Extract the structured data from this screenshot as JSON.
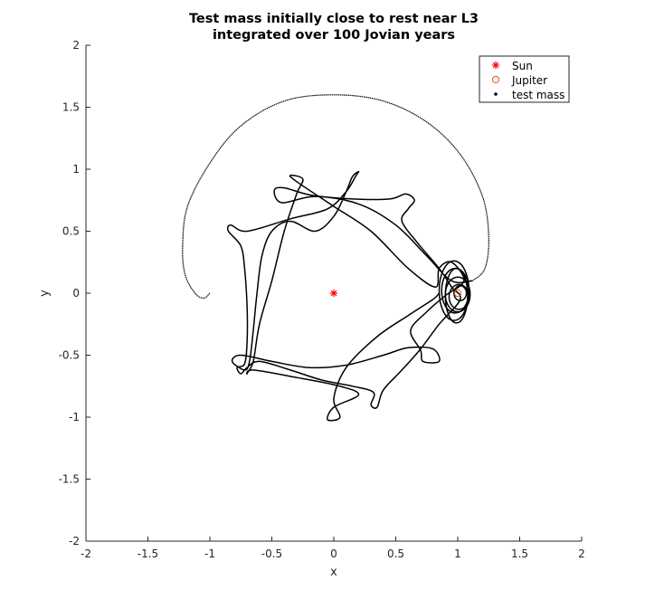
{
  "chart_data": {
    "type": "line",
    "title": "Test mass initially close to rest near L3",
    "subtitle": "integrated over 100 Jovian years",
    "xlabel": "x",
    "ylabel": "y",
    "xlim": [
      -2,
      2
    ],
    "ylim": [
      -2,
      2
    ],
    "xticks": [
      "-2",
      "-1.5",
      "-1",
      "-0.5",
      "0",
      "0.5",
      "1",
      "1.5",
      "2"
    ],
    "yticks": [
      "-2",
      "-1.5",
      "-1",
      "-0.5",
      "0",
      "0.5",
      "1",
      "1.5",
      "2"
    ],
    "grid": false,
    "legend_position": "top-right",
    "legend": [
      {
        "label": "Sun",
        "marker": "asterisk",
        "color": "#ff0000"
      },
      {
        "label": "Jupiter",
        "marker": "circle",
        "color": "#d95319"
      },
      {
        "label": "test mass",
        "marker": "dot",
        "color": "#000000"
      }
    ],
    "sun": {
      "x": 0,
      "y": 0
    },
    "jupiter": {
      "x": 1,
      "y": 0
    },
    "outer_arc": [
      [
        -1.0,
        0.0
      ],
      [
        -1.05,
        -0.04
      ],
      [
        -1.12,
        0.0
      ],
      [
        -1.2,
        0.15
      ],
      [
        -1.22,
        0.38
      ],
      [
        -1.18,
        0.7
      ],
      [
        -1.0,
        1.05
      ],
      [
        -0.75,
        1.35
      ],
      [
        -0.4,
        1.55
      ],
      [
        0.0,
        1.6
      ],
      [
        0.4,
        1.55
      ],
      [
        0.75,
        1.38
      ],
      [
        1.02,
        1.12
      ],
      [
        1.2,
        0.78
      ],
      [
        1.25,
        0.45
      ],
      [
        1.22,
        0.2
      ],
      [
        1.12,
        0.1
      ]
    ],
    "loop_chain": [
      [
        1.12,
        0.1
      ],
      [
        0.95,
        0.1
      ],
      [
        0.75,
        0.3
      ],
      [
        0.5,
        0.55
      ],
      [
        0.2,
        0.72
      ],
      [
        -0.15,
        0.78
      ],
      [
        -0.42,
        0.73
      ],
      [
        -0.48,
        0.83
      ],
      [
        -0.4,
        0.85
      ],
      [
        -0.18,
        0.79
      ],
      [
        0.15,
        0.76
      ],
      [
        0.45,
        0.76
      ],
      [
        0.58,
        0.8
      ],
      [
        0.65,
        0.75
      ],
      [
        0.6,
        0.68
      ],
      [
        0.55,
        0.58
      ],
      [
        0.68,
        0.4
      ],
      [
        0.85,
        0.2
      ],
      [
        0.95,
        0.05
      ],
      [
        1.02,
        -0.05
      ],
      [
        0.85,
        -0.25
      ],
      [
        0.7,
        -0.45
      ],
      [
        0.55,
        -0.62
      ],
      [
        0.4,
        -0.78
      ],
      [
        0.35,
        -0.92
      ],
      [
        0.3,
        -0.9
      ],
      [
        0.32,
        -0.8
      ],
      [
        0.15,
        -0.75
      ],
      [
        -0.1,
        -0.7
      ],
      [
        -0.35,
        -0.62
      ],
      [
        -0.6,
        -0.55
      ],
      [
        -0.7,
        -0.6
      ],
      [
        -0.75,
        -0.65
      ],
      [
        -0.78,
        -0.6
      ],
      [
        -0.72,
        -0.57
      ],
      [
        -0.7,
        -0.4
      ],
      [
        -0.7,
        -0.1
      ],
      [
        -0.72,
        0.2
      ],
      [
        -0.75,
        0.38
      ],
      [
        -0.85,
        0.5
      ],
      [
        -0.83,
        0.55
      ],
      [
        -0.7,
        0.5
      ],
      [
        -0.35,
        0.6
      ],
      [
        -0.05,
        0.68
      ],
      [
        0.1,
        0.82
      ],
      [
        0.18,
        0.95
      ],
      [
        0.2,
        0.98
      ],
      [
        0.15,
        0.94
      ],
      [
        0.1,
        0.82
      ],
      [
        0.0,
        0.62
      ],
      [
        -0.15,
        0.5
      ],
      [
        -0.35,
        0.58
      ],
      [
        -0.5,
        0.5
      ],
      [
        -0.58,
        0.3
      ],
      [
        -0.62,
        0.0
      ],
      [
        -0.65,
        -0.3
      ],
      [
        -0.68,
        -0.55
      ],
      [
        -0.72,
        -0.62
      ],
      [
        -0.82,
        -0.55
      ],
      [
        -0.75,
        -0.5
      ],
      [
        -0.5,
        -0.55
      ],
      [
        -0.2,
        -0.6
      ],
      [
        0.1,
        -0.58
      ],
      [
        0.4,
        -0.5
      ],
      [
        0.6,
        -0.44
      ],
      [
        0.8,
        -0.45
      ],
      [
        0.85,
        -0.55
      ],
      [
        0.72,
        -0.55
      ],
      [
        0.7,
        -0.46
      ],
      [
        0.62,
        -0.3
      ],
      [
        0.75,
        -0.15
      ],
      [
        0.9,
        -0.02
      ],
      [
        1.05,
        0.1
      ],
      [
        0.95,
        0.25
      ],
      [
        0.85,
        0.2
      ],
      [
        0.82,
        0.05
      ],
      [
        0.6,
        0.2
      ],
      [
        0.3,
        0.5
      ],
      [
        0.0,
        0.7
      ],
      [
        -0.3,
        0.9
      ],
      [
        -0.35,
        0.95
      ],
      [
        -0.25,
        0.92
      ],
      [
        -0.3,
        0.8
      ],
      [
        -0.4,
        0.5
      ],
      [
        -0.5,
        0.1
      ],
      [
        -0.6,
        -0.25
      ],
      [
        -0.65,
        -0.55
      ],
      [
        -0.7,
        -0.65
      ],
      [
        -0.65,
        -0.62
      ],
      [
        -0.3,
        -0.68
      ],
      [
        0.05,
        -0.75
      ],
      [
        0.2,
        -0.82
      ],
      [
        0.0,
        -0.92
      ],
      [
        -0.05,
        -1.02
      ],
      [
        0.05,
        -1.0
      ],
      [
        0.0,
        -0.85
      ],
      [
        0.1,
        -0.6
      ],
      [
        0.35,
        -0.35
      ],
      [
        0.6,
        -0.18
      ],
      [
        0.8,
        -0.05
      ],
      [
        0.85,
        0.0
      ]
    ],
    "jupiter_loops": [
      {
        "cx": 0.97,
        "cy": 0.02,
        "rx": 0.12,
        "ry": 0.24
      },
      {
        "cx": 0.98,
        "cy": 0.02,
        "rx": 0.11,
        "ry": 0.18
      },
      {
        "cx": 1.0,
        "cy": -0.01,
        "rx": 0.1,
        "ry": 0.14
      },
      {
        "cx": 0.99,
        "cy": -0.02,
        "rx": 0.09,
        "ry": 0.22
      },
      {
        "cx": 1.01,
        "cy": -0.03,
        "rx": 0.08,
        "ry": 0.1
      },
      {
        "cx": 1.02,
        "cy": 0.0,
        "rx": 0.05,
        "ry": 0.06
      }
    ]
  }
}
